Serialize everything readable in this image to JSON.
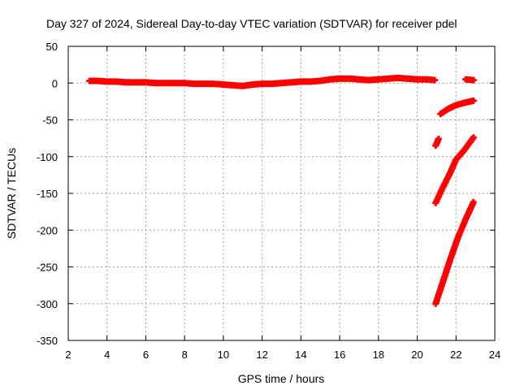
{
  "chart_data": {
    "type": "scatter",
    "title": "Day 327 of 2024, Sidereal Day-to-day VTEC variation (SDTVAR) for receiver pdel",
    "xlabel": "GPS time / hours",
    "ylabel": "SDTVAR / TECUs",
    "xlim": [
      2,
      24
    ],
    "ylim": [
      -350,
      50
    ],
    "x_ticks": [
      2,
      4,
      6,
      8,
      10,
      12,
      14,
      16,
      18,
      20,
      22,
      24
    ],
    "y_ticks": [
      50,
      0,
      -50,
      -100,
      -150,
      -200,
      -250,
      -300,
      -350
    ],
    "grid": true,
    "legend": "none",
    "marker_color": "#ff0000",
    "series": [
      {
        "x": [
          3.1,
          3.5,
          4.0,
          4.5,
          5.0,
          5.5,
          6.0,
          6.5,
          7.0,
          7.5,
          8.0,
          8.5,
          9.0,
          9.5,
          10.0,
          10.5,
          11.0,
          11.5,
          12.0,
          12.5,
          13.0,
          13.5,
          14.0,
          14.5,
          15.0,
          15.5,
          16.0,
          16.5,
          17.0,
          17.5,
          18.0,
          18.5,
          19.0,
          19.5,
          20.0,
          20.5,
          20.9
        ],
        "y": [
          3,
          3,
          2,
          2,
          1,
          1,
          1,
          0,
          0,
          0,
          0,
          -1,
          -1,
          -1,
          -2,
          -3,
          -4,
          -2,
          -1,
          -1,
          0,
          1,
          2,
          2,
          3,
          5,
          6,
          6,
          5,
          4,
          5,
          6,
          7,
          6,
          5,
          5,
          4
        ]
      },
      {
        "x": [
          22.5,
          22.9
        ],
        "y": [
          5,
          4
        ]
      },
      {
        "x": [
          21.2,
          21.6,
          22.0,
          22.4,
          22.9
        ],
        "y": [
          -42,
          -35,
          -30,
          -27,
          -24
        ]
      },
      {
        "x": [
          20.95,
          21.1
        ],
        "y": [
          -85,
          -76
        ]
      },
      {
        "x": [
          20.95,
          21.3,
          21.7,
          22.0,
          22.4,
          22.9
        ],
        "y": [
          -163,
          -143,
          -122,
          -104,
          -92,
          -74
        ]
      },
      {
        "x": [
          20.95,
          21.3,
          21.7,
          22.1,
          22.5,
          22.9
        ],
        "y": [
          -300,
          -272,
          -240,
          -210,
          -185,
          -162
        ]
      }
    ]
  }
}
